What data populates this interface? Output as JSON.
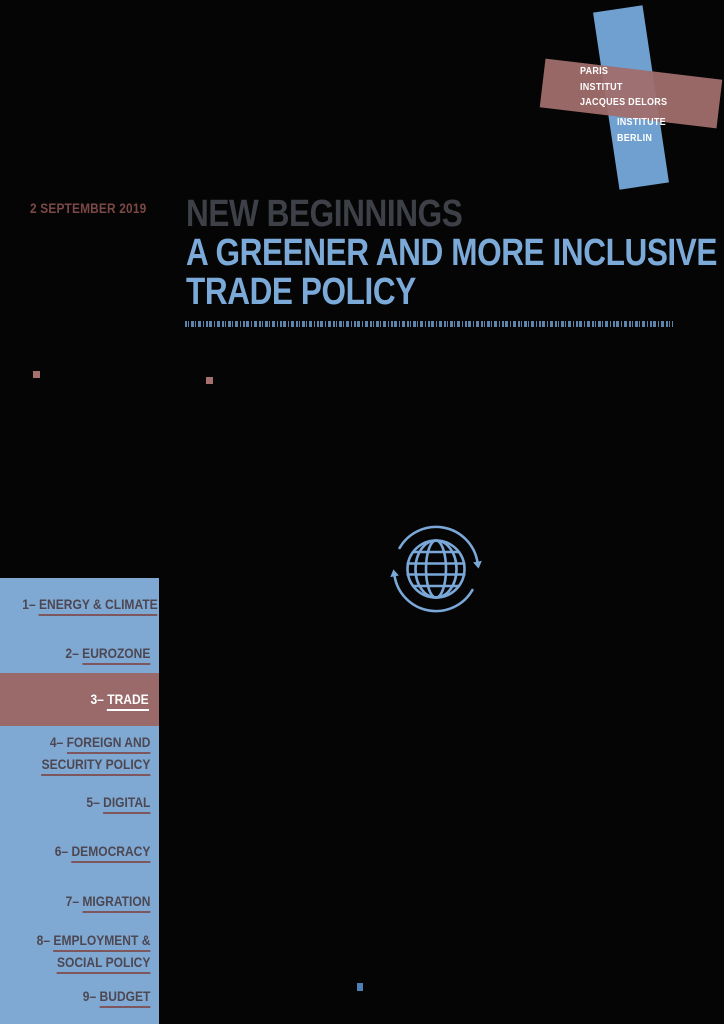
{
  "logo": {
    "paris_lines": [
      "PARIS",
      "INSTITUT",
      "JACQUES DELORS"
    ],
    "berlin_lines": [
      "INSTITUTE",
      "BERLIN"
    ]
  },
  "date": "2 SEPTEMBER 2019",
  "title": {
    "line1": "NEW BEGINNINGS",
    "line2": "A GREENER AND MORE INCLUSIVE",
    "line3": "TRADE POLICY"
  },
  "sidebar": {
    "items": [
      {
        "id": "energy-climate",
        "num": "1– ",
        "lines": [
          "ENERGY & CLIMATE"
        ],
        "active": false
      },
      {
        "id": "eurozone",
        "num": "2– ",
        "lines": [
          "EUROZONE"
        ],
        "active": false
      },
      {
        "id": "trade",
        "num": "3– ",
        "lines": [
          "TRADE"
        ],
        "active": true
      },
      {
        "id": "foreign-security",
        "num": "4– ",
        "lines": [
          "FOREIGN AND",
          "SECURITY POLICY"
        ],
        "active": false
      },
      {
        "id": "digital",
        "num": "5– ",
        "lines": [
          "DIGITAL"
        ],
        "active": false
      },
      {
        "id": "democracy",
        "num": "6– ",
        "lines": [
          "DEMOCRACY"
        ],
        "active": false
      },
      {
        "id": "migration",
        "num": "7– ",
        "lines": [
          "MIGRATION"
        ],
        "active": false
      },
      {
        "id": "employment-social",
        "num": "8– ",
        "lines": [
          "EMPLOYMENT &",
          "SOCIAL POLICY"
        ],
        "active": false
      },
      {
        "id": "budget",
        "num": "9– ",
        "lines": [
          "BUDGET"
        ],
        "active": false
      }
    ]
  },
  "icons": {
    "globe": "globe-with-rotation-arrows-icon"
  },
  "colors": {
    "background": "#050506",
    "sidebar_blue": "#7fa9d3",
    "logo_blue": "#6fa0d0",
    "logo_red": "#a06e6c",
    "accent_red": "#9a6a6a",
    "title_gray": "#3d4147",
    "title_blue": "#7caad8",
    "barcode_blue": "#5d84ab",
    "date_red": "#7b4845",
    "sidebar_text": "#4c4752",
    "underline_red": "#7e565e",
    "bullet_red": "#a5716f",
    "mini_square_blue": "#4d80b4"
  }
}
